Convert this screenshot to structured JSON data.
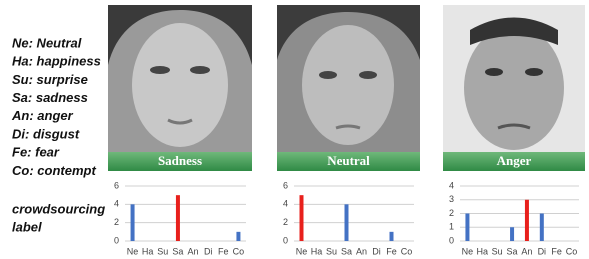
{
  "legend": [
    "Ne: Neutral",
    "Ha: happiness",
    "Su: surprise",
    "Sa: sadness",
    "An: anger",
    "Di: disgust",
    "Fe: fear",
    "Co: contempt"
  ],
  "side_label": [
    "crowdsourcing",
    "label"
  ],
  "panels": [
    {
      "label": "Sadness",
      "chart": {
        "type": "bar",
        "categories": [
          "Ne",
          "Ha",
          "Su",
          "Sa",
          "An",
          "Di",
          "Fe",
          "Co"
        ],
        "values": [
          4,
          0,
          0,
          5,
          0,
          0,
          0,
          1
        ],
        "colors": [
          "#4472c4",
          "#4472c4",
          "#4472c4",
          "#e8201c",
          "#4472c4",
          "#4472c4",
          "#4472c4",
          "#4472c4"
        ],
        "ylim": [
          0,
          6
        ],
        "yticks": [
          0,
          2,
          4,
          6
        ],
        "grid": true
      }
    },
    {
      "label": "Neutral",
      "chart": {
        "type": "bar",
        "categories": [
          "Ne",
          "Ha",
          "Su",
          "Sa",
          "An",
          "Di",
          "Fe",
          "Co"
        ],
        "values": [
          5,
          0,
          0,
          4,
          0,
          0,
          1,
          0
        ],
        "colors": [
          "#e8201c",
          "#4472c4",
          "#4472c4",
          "#4472c4",
          "#4472c4",
          "#4472c4",
          "#4472c4",
          "#4472c4"
        ],
        "ylim": [
          0,
          6
        ],
        "yticks": [
          0,
          2,
          4,
          6
        ],
        "grid": true
      }
    },
    {
      "label": "Anger",
      "chart": {
        "type": "bar",
        "categories": [
          "Ne",
          "Ha",
          "Su",
          "Sa",
          "An",
          "Di",
          "Fe",
          "Co"
        ],
        "values": [
          2,
          0,
          0,
          1,
          3,
          2,
          0,
          0
        ],
        "colors": [
          "#4472c4",
          "#4472c4",
          "#4472c4",
          "#4472c4",
          "#e8201c",
          "#4472c4",
          "#4472c4",
          "#4472c4"
        ],
        "ylim": [
          0,
          4
        ],
        "yticks": [
          0,
          1,
          2,
          3,
          4
        ],
        "grid": true
      }
    }
  ]
}
